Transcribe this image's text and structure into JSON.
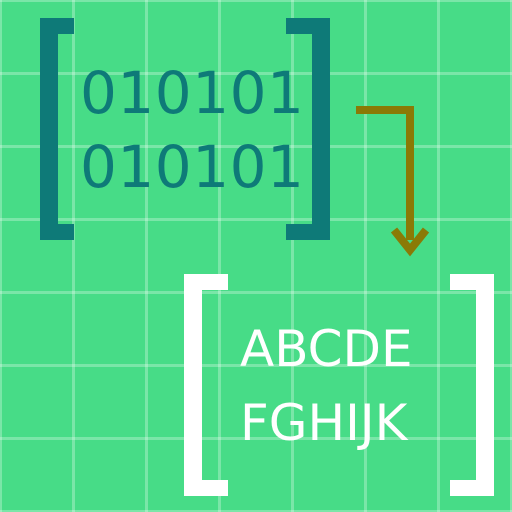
{
  "binary": {
    "line1": "010101",
    "line2": "010101"
  },
  "letters": {
    "line1": "ABCDE",
    "line2": "FGHIJK"
  },
  "colors": {
    "background": "#47DC87",
    "grid": "#FFFFFF",
    "binary_bracket": "#0E7A78",
    "letters_bracket": "#FFFFFF",
    "arrow": "#8A7A06"
  },
  "icons": [
    "bracket-icon",
    "arrow-icon"
  ]
}
